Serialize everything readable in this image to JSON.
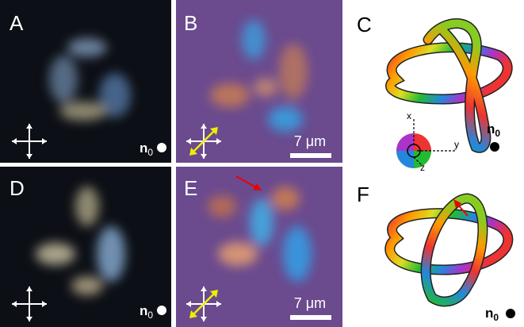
{
  "panels": [
    {
      "label": "A",
      "n": "n",
      "sub": "0"
    },
    {
      "label": "B",
      "scale": "7 μm"
    },
    {
      "label": "C",
      "n": "n",
      "sub": "0"
    },
    {
      "label": "D",
      "n": "n",
      "sub": "0"
    },
    {
      "label": "E",
      "scale": "7 μm"
    },
    {
      "label": "F",
      "n": "n",
      "sub": "0"
    }
  ],
  "axes": {
    "x": "x",
    "y": "y",
    "z": "z"
  }
}
